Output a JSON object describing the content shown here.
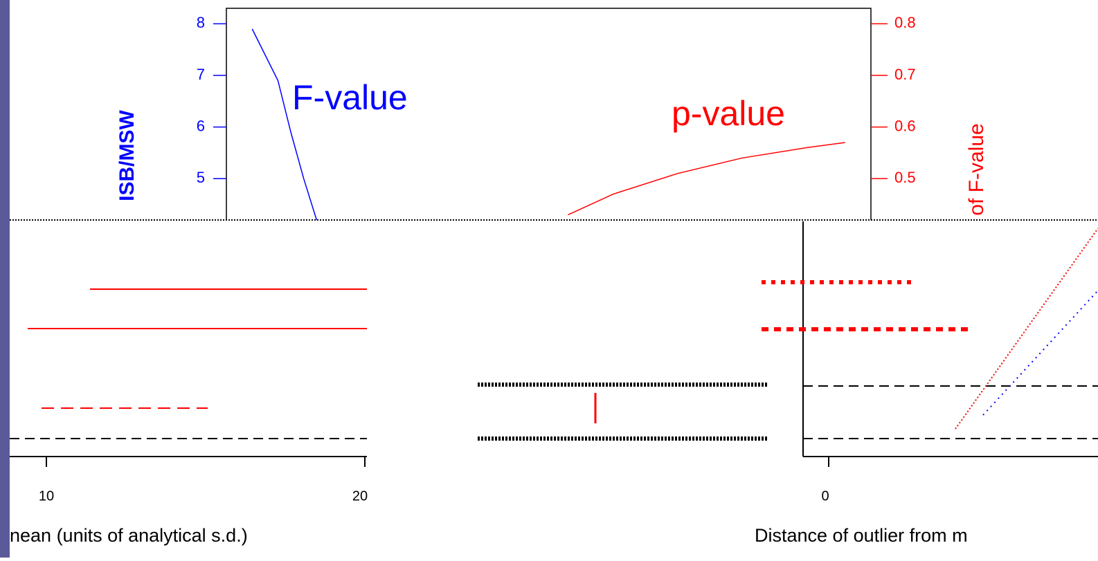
{
  "chart_data": {
    "type": "line",
    "y_label": "ISB/MSW",
    "y2_label": "of F-value",
    "annotations": [
      "F-value",
      "p-value"
    ],
    "bottom_texts": [
      "nean (units of analytical s.d.)",
      "Distance of outlier from m"
    ],
    "bottom_ticks": [
      "10",
      "20",
      "0"
    ],
    "xlim": [
      0,
      10
    ],
    "ylim": [
      4.2,
      8.3
    ],
    "yticks": [
      5,
      6,
      7,
      8
    ],
    "y2lim": [
      0.42,
      0.83
    ],
    "y2ticks": [
      0.5,
      0.6,
      0.7,
      0.8
    ],
    "series": [
      {
        "name": "F-value",
        "color": "#0000ff",
        "x": [
          0.4,
          0.8,
          1.0,
          1.2,
          1.4
        ],
        "values": [
          7.9,
          6.9,
          5.9,
          5.0,
          4.2
        ]
      },
      {
        "name": "p-value",
        "color": "#ff0000",
        "axis": "y2",
        "x": [
          5.3,
          6,
          7,
          8,
          9,
          9.6
        ],
        "values": [
          0.43,
          0.47,
          0.51,
          0.54,
          0.56,
          0.57
        ]
      }
    ]
  }
}
